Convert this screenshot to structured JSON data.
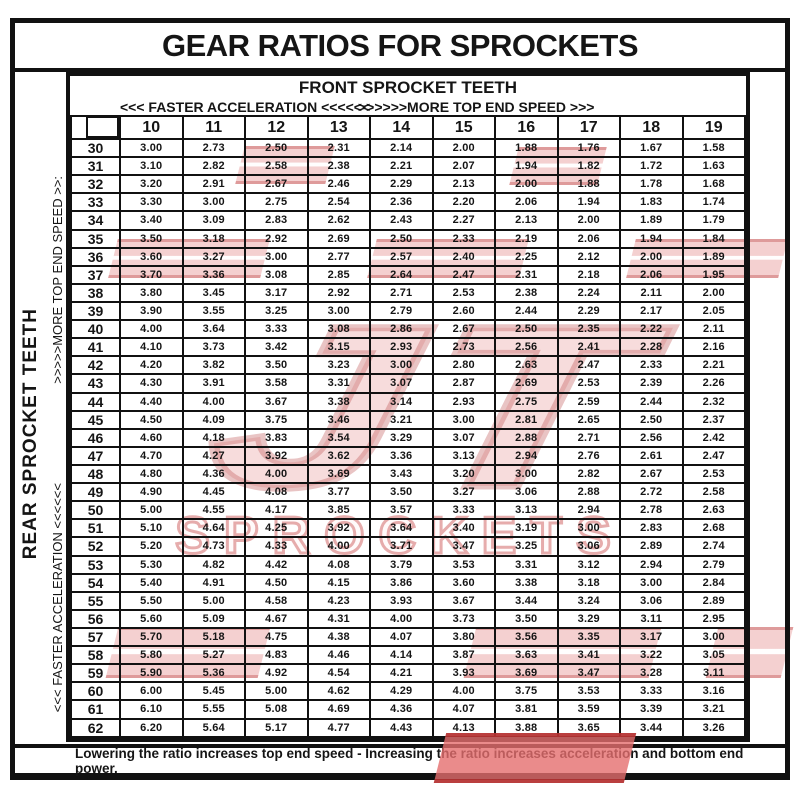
{
  "page": {
    "title": "GEAR RATIOS FOR SPROCKETS",
    "footer_note": "Lowering the ratio increases top end speed - Increasing the ratio increases acceleration and bottom end power."
  },
  "header": {
    "front_label": "FRONT SPROCKET TEETH",
    "faster_acceleration": "<<< FASTER  ACCELERATION <<<<<<",
    "more_top_end_speed": ">>>>>>MORE TOP END SPEED >>>"
  },
  "side": {
    "rear_label": "REAR SPROCKET TEETH",
    "more_top_end_speed": ">>>>>MORE TOP END SPEED >>:",
    "faster_acceleration": "<<< FASTER  ACCELERATION <<<<<<"
  },
  "watermark": {
    "logo_text": "JT",
    "brand_text": "SPROCKETS",
    "color": "#c8403f"
  },
  "chart_data": {
    "type": "table",
    "title": "GEAR RATIOS FOR SPROCKETS",
    "columns_axis": "FRONT SPROCKET TEETH",
    "rows_axis": "REAR SPROCKET TEETH",
    "corner_label": "",
    "columns": [
      "10",
      "11",
      "12",
      "13",
      "14",
      "15",
      "16",
      "17",
      "18",
      "19"
    ],
    "rows": [
      {
        "rear": "30",
        "ratios": [
          "3.00",
          "2.73",
          "2.50",
          "2.31",
          "2.14",
          "2.00",
          "1.88",
          "1.76",
          "1.67",
          "1.58"
        ]
      },
      {
        "rear": "31",
        "ratios": [
          "3.10",
          "2.82",
          "2.58",
          "2.38",
          "2.21",
          "2.07",
          "1.94",
          "1.82",
          "1.72",
          "1.63"
        ]
      },
      {
        "rear": "32",
        "ratios": [
          "3.20",
          "2.91",
          "2.67",
          "2.46",
          "2.29",
          "2.13",
          "2.00",
          "1.88",
          "1.78",
          "1.68"
        ]
      },
      {
        "rear": "33",
        "ratios": [
          "3.30",
          "3.00",
          "2.75",
          "2.54",
          "2.36",
          "2.20",
          "2.06",
          "1.94",
          "1.83",
          "1.74"
        ]
      },
      {
        "rear": "34",
        "ratios": [
          "3.40",
          "3.09",
          "2.83",
          "2.62",
          "2.43",
          "2.27",
          "2.13",
          "2.00",
          "1.89",
          "1.79"
        ]
      },
      {
        "rear": "35",
        "ratios": [
          "3.50",
          "3.18",
          "2.92",
          "2.69",
          "2.50",
          "2.33",
          "2.19",
          "2.06",
          "1.94",
          "1.84"
        ]
      },
      {
        "rear": "36",
        "ratios": [
          "3.60",
          "3.27",
          "3.00",
          "2.77",
          "2.57",
          "2.40",
          "2.25",
          "2.12",
          "2.00",
          "1.89"
        ]
      },
      {
        "rear": "37",
        "ratios": [
          "3.70",
          "3.36",
          "3.08",
          "2.85",
          "2.64",
          "2.47",
          "2.31",
          "2.18",
          "2.06",
          "1.95"
        ]
      },
      {
        "rear": "38",
        "ratios": [
          "3.80",
          "3.45",
          "3.17",
          "2.92",
          "2.71",
          "2.53",
          "2.38",
          "2.24",
          "2.11",
          "2.00"
        ]
      },
      {
        "rear": "39",
        "ratios": [
          "3.90",
          "3.55",
          "3.25",
          "3.00",
          "2.79",
          "2.60",
          "2.44",
          "2.29",
          "2.17",
          "2.05"
        ]
      },
      {
        "rear": "40",
        "ratios": [
          "4.00",
          "3.64",
          "3.33",
          "3.08",
          "2.86",
          "2.67",
          "2.50",
          "2.35",
          "2.22",
          "2.11"
        ]
      },
      {
        "rear": "41",
        "ratios": [
          "4.10",
          "3.73",
          "3.42",
          "3.15",
          "2.93",
          "2.73",
          "2.56",
          "2.41",
          "2.28",
          "2.16"
        ]
      },
      {
        "rear": "42",
        "ratios": [
          "4.20",
          "3.82",
          "3.50",
          "3.23",
          "3.00",
          "2.80",
          "2.63",
          "2.47",
          "2.33",
          "2.21"
        ]
      },
      {
        "rear": "43",
        "ratios": [
          "4.30",
          "3.91",
          "3.58",
          "3.31",
          "3.07",
          "2.87",
          "2.69",
          "2.53",
          "2.39",
          "2.26"
        ]
      },
      {
        "rear": "44",
        "ratios": [
          "4.40",
          "4.00",
          "3.67",
          "3.38",
          "3.14",
          "2.93",
          "2.75",
          "2.59",
          "2.44",
          "2.32"
        ]
      },
      {
        "rear": "45",
        "ratios": [
          "4.50",
          "4.09",
          "3.75",
          "3.46",
          "3.21",
          "3.00",
          "2.81",
          "2.65",
          "2.50",
          "2.37"
        ]
      },
      {
        "rear": "46",
        "ratios": [
          "4.60",
          "4.18",
          "3.83",
          "3.54",
          "3.29",
          "3.07",
          "2.88",
          "2.71",
          "2.56",
          "2.42"
        ]
      },
      {
        "rear": "47",
        "ratios": [
          "4.70",
          "4.27",
          "3.92",
          "3.62",
          "3.36",
          "3.13",
          "2.94",
          "2.76",
          "2.61",
          "2.47"
        ]
      },
      {
        "rear": "48",
        "ratios": [
          "4.80",
          "4.36",
          "4.00",
          "3.69",
          "3.43",
          "3.20",
          "3.00",
          "2.82",
          "2.67",
          "2.53"
        ]
      },
      {
        "rear": "49",
        "ratios": [
          "4.90",
          "4.45",
          "4.08",
          "3.77",
          "3.50",
          "3.27",
          "3.06",
          "2.88",
          "2.72",
          "2.58"
        ]
      },
      {
        "rear": "50",
        "ratios": [
          "5.00",
          "4.55",
          "4.17",
          "3.85",
          "3.57",
          "3.33",
          "3.13",
          "2.94",
          "2.78",
          "2.63"
        ]
      },
      {
        "rear": "51",
        "ratios": [
          "5.10",
          "4.64",
          "4.25",
          "3.92",
          "3.64",
          "3.40",
          "3.19",
          "3.00",
          "2.83",
          "2.68"
        ]
      },
      {
        "rear": "52",
        "ratios": [
          "5.20",
          "4.73",
          "4.33",
          "4.00",
          "3.71",
          "3.47",
          "3.25",
          "3.06",
          "2.89",
          "2.74"
        ]
      },
      {
        "rear": "53",
        "ratios": [
          "5.30",
          "4.82",
          "4.42",
          "4.08",
          "3.79",
          "3.53",
          "3.31",
          "3.12",
          "2.94",
          "2.79"
        ]
      },
      {
        "rear": "54",
        "ratios": [
          "5.40",
          "4.91",
          "4.50",
          "4.15",
          "3.86",
          "3.60",
          "3.38",
          "3.18",
          "3.00",
          "2.84"
        ]
      },
      {
        "rear": "55",
        "ratios": [
          "5.50",
          "5.00",
          "4.58",
          "4.23",
          "3.93",
          "3.67",
          "3.44",
          "3.24",
          "3.06",
          "2.89"
        ]
      },
      {
        "rear": "56",
        "ratios": [
          "5.60",
          "5.09",
          "4.67",
          "4.31",
          "4.00",
          "3.73",
          "3.50",
          "3.29",
          "3.11",
          "2.95"
        ]
      },
      {
        "rear": "57",
        "ratios": [
          "5.70",
          "5.18",
          "4.75",
          "4.38",
          "4.07",
          "3.80",
          "3.56",
          "3.35",
          "3.17",
          "3.00"
        ]
      },
      {
        "rear": "58",
        "ratios": [
          "5.80",
          "5.27",
          "4.83",
          "4.46",
          "4.14",
          "3.87",
          "3.63",
          "3.41",
          "3.22",
          "3.05"
        ]
      },
      {
        "rear": "59",
        "ratios": [
          "5.90",
          "5.36",
          "4.92",
          "4.54",
          "4.21",
          "3.93",
          "3.69",
          "3.47",
          "3.28",
          "3.11"
        ]
      },
      {
        "rear": "60",
        "ratios": [
          "6.00",
          "5.45",
          "5.00",
          "4.62",
          "4.29",
          "4.00",
          "3.75",
          "3.53",
          "3.33",
          "3.16"
        ]
      },
      {
        "rear": "61",
        "ratios": [
          "6.10",
          "5.55",
          "5.08",
          "4.69",
          "4.36",
          "4.07",
          "3.81",
          "3.59",
          "3.39",
          "3.21"
        ]
      },
      {
        "rear": "62",
        "ratios": [
          "6.20",
          "5.64",
          "5.17",
          "4.77",
          "4.43",
          "4.13",
          "3.88",
          "3.65",
          "3.44",
          "3.26"
        ]
      }
    ]
  }
}
